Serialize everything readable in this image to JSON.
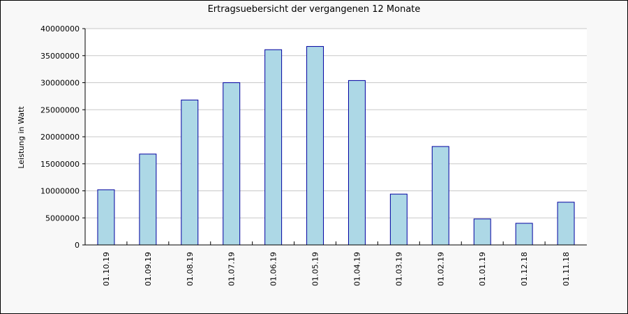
{
  "chart_data": {
    "type": "bar",
    "title": "Ertragsuebersicht der vergangenen 12 Monate",
    "xlabel": "",
    "ylabel": "Leistung in Watt",
    "ylim": [
      0,
      40000000
    ],
    "yticks": [
      0,
      5000000,
      10000000,
      15000000,
      20000000,
      25000000,
      30000000,
      35000000,
      40000000
    ],
    "ytick_labels": [
      "0",
      "5000000",
      "10000000",
      "15000000",
      "20000000",
      "25000000",
      "30000000",
      "35000000",
      "40000000"
    ],
    "categories": [
      "01.10.19",
      "01.09.19",
      "01.08.19",
      "01.07.19",
      "01.06.19",
      "01.05.19",
      "01.04.19",
      "01.03.19",
      "01.02.19",
      "01.01.19",
      "01.12.18",
      "01.11.18"
    ],
    "values": [
      10200000,
      16800000,
      26800000,
      30000000,
      36100000,
      36700000,
      30400000,
      9400000,
      18200000,
      4800000,
      4000000,
      7900000
    ],
    "grid": true,
    "bar_fill": "#add8e6",
    "bar_stroke": "#0000a0",
    "grid_color": "#c8c8c8"
  }
}
